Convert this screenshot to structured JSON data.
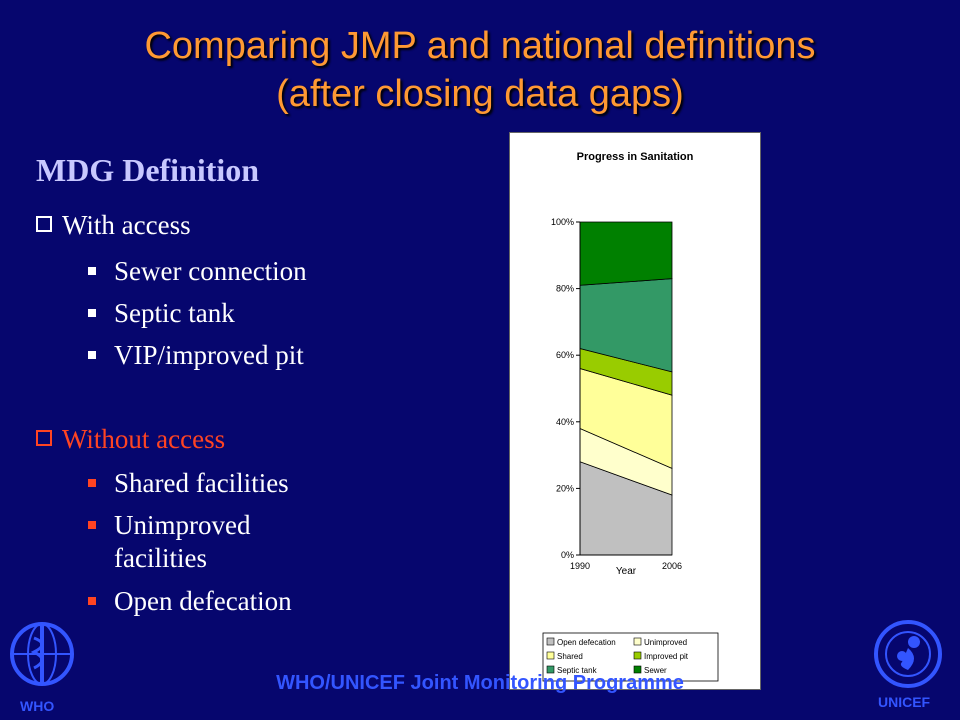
{
  "title": {
    "line1": "Comparing JMP and national definitions",
    "line2": "(after closing data gaps)"
  },
  "definition_heading": "MDG Definition",
  "with_access": {
    "label": "With access",
    "items": [
      "Sewer connection",
      "Septic tank",
      "VIP/improved pit"
    ]
  },
  "without_access": {
    "label": "Without access",
    "items": [
      "Shared facilities",
      "Unimproved",
      "facilities",
      "Open defecation"
    ]
  },
  "footer": "WHO/UNICEF Joint Monitoring Programme",
  "logos": {
    "left": "WHO",
    "right": "UNICEF"
  },
  "colors": {
    "background": "#06066e",
    "title": "#ff9933",
    "heading": "#c8c8ff",
    "red_text": "#ff4422",
    "footer": "#3355ff"
  },
  "chart_data": {
    "type": "area",
    "title": "Progress in Sanitation",
    "xlabel": "Year",
    "ylabel": "",
    "x": [
      "1990",
      "2006"
    ],
    "yticks": [
      "0%",
      "20%",
      "40%",
      "60%",
      "80%",
      "100%"
    ],
    "ylim": [
      0,
      100
    ],
    "stacked": true,
    "series": [
      {
        "name": "Open defecation",
        "color": "#c0c0c0",
        "values": [
          28,
          18
        ]
      },
      {
        "name": "Unimproved",
        "color": "#ffffcc",
        "values": [
          10,
          8
        ]
      },
      {
        "name": "Shared",
        "color": "#ffff99",
        "values": [
          18,
          22
        ]
      },
      {
        "name": "Improved pit",
        "color": "#99cc00",
        "values": [
          6,
          7
        ]
      },
      {
        "name": "Septic tank",
        "color": "#339966",
        "values": [
          19,
          28
        ]
      },
      {
        "name": "Sewer",
        "color": "#008000",
        "values": [
          19,
          17
        ]
      }
    ],
    "legend_position": "bottom"
  }
}
